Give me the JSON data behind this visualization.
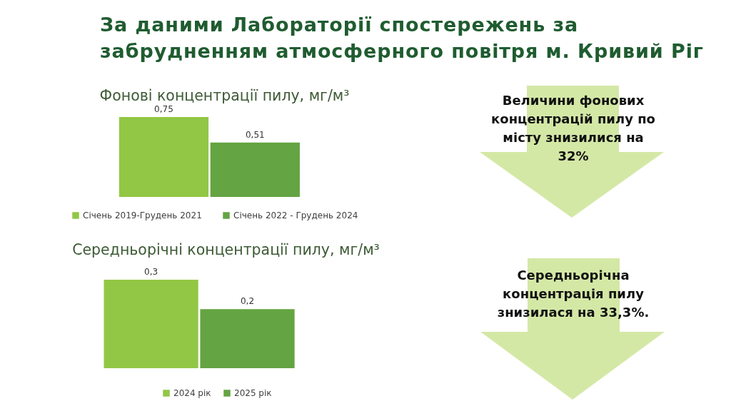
{
  "chart_data": [
    {
      "type": "other",
      "title": "За даними Лабораторії спостережень за забрудненням атмосферного повітря м. Кривий Ріг"
    },
    {
      "type": "bar",
      "title": "Фонові концентрації пилу, мг/м³",
      "categories": [
        null
      ],
      "series": [
        {
          "name": "Січень 2019-Грудень 2021",
          "color": "#92c745",
          "values": [
            0.75
          ],
          "value_labels": [
            "0,75"
          ]
        },
        {
          "name": "Січень 2022 - Грудень 2024",
          "color": "#64a443",
          "values": [
            0.51
          ],
          "value_labels": [
            "0,51"
          ]
        }
      ],
      "legend": "bottom",
      "annotations": [
        "Величини фонових концентрацій пилу по місту знизилися на 32%"
      ]
    },
    {
      "type": "bar",
      "title": "Середньорічні концентрації пилу, мг/м³",
      "categories": [
        null
      ],
      "series": [
        {
          "name": "2024 рік",
          "color": "#92c745",
          "values": [
            0.3
          ],
          "value_labels": [
            "0,3"
          ]
        },
        {
          "name": "2025 рік",
          "color": "#64a443",
          "values": [
            0.2
          ],
          "value_labels": [
            "0,2"
          ]
        }
      ],
      "legend": "bottom",
      "annotations": [
        "Середньорічна концентрація пилу знизилася на 33,3%."
      ]
    }
  ]
}
